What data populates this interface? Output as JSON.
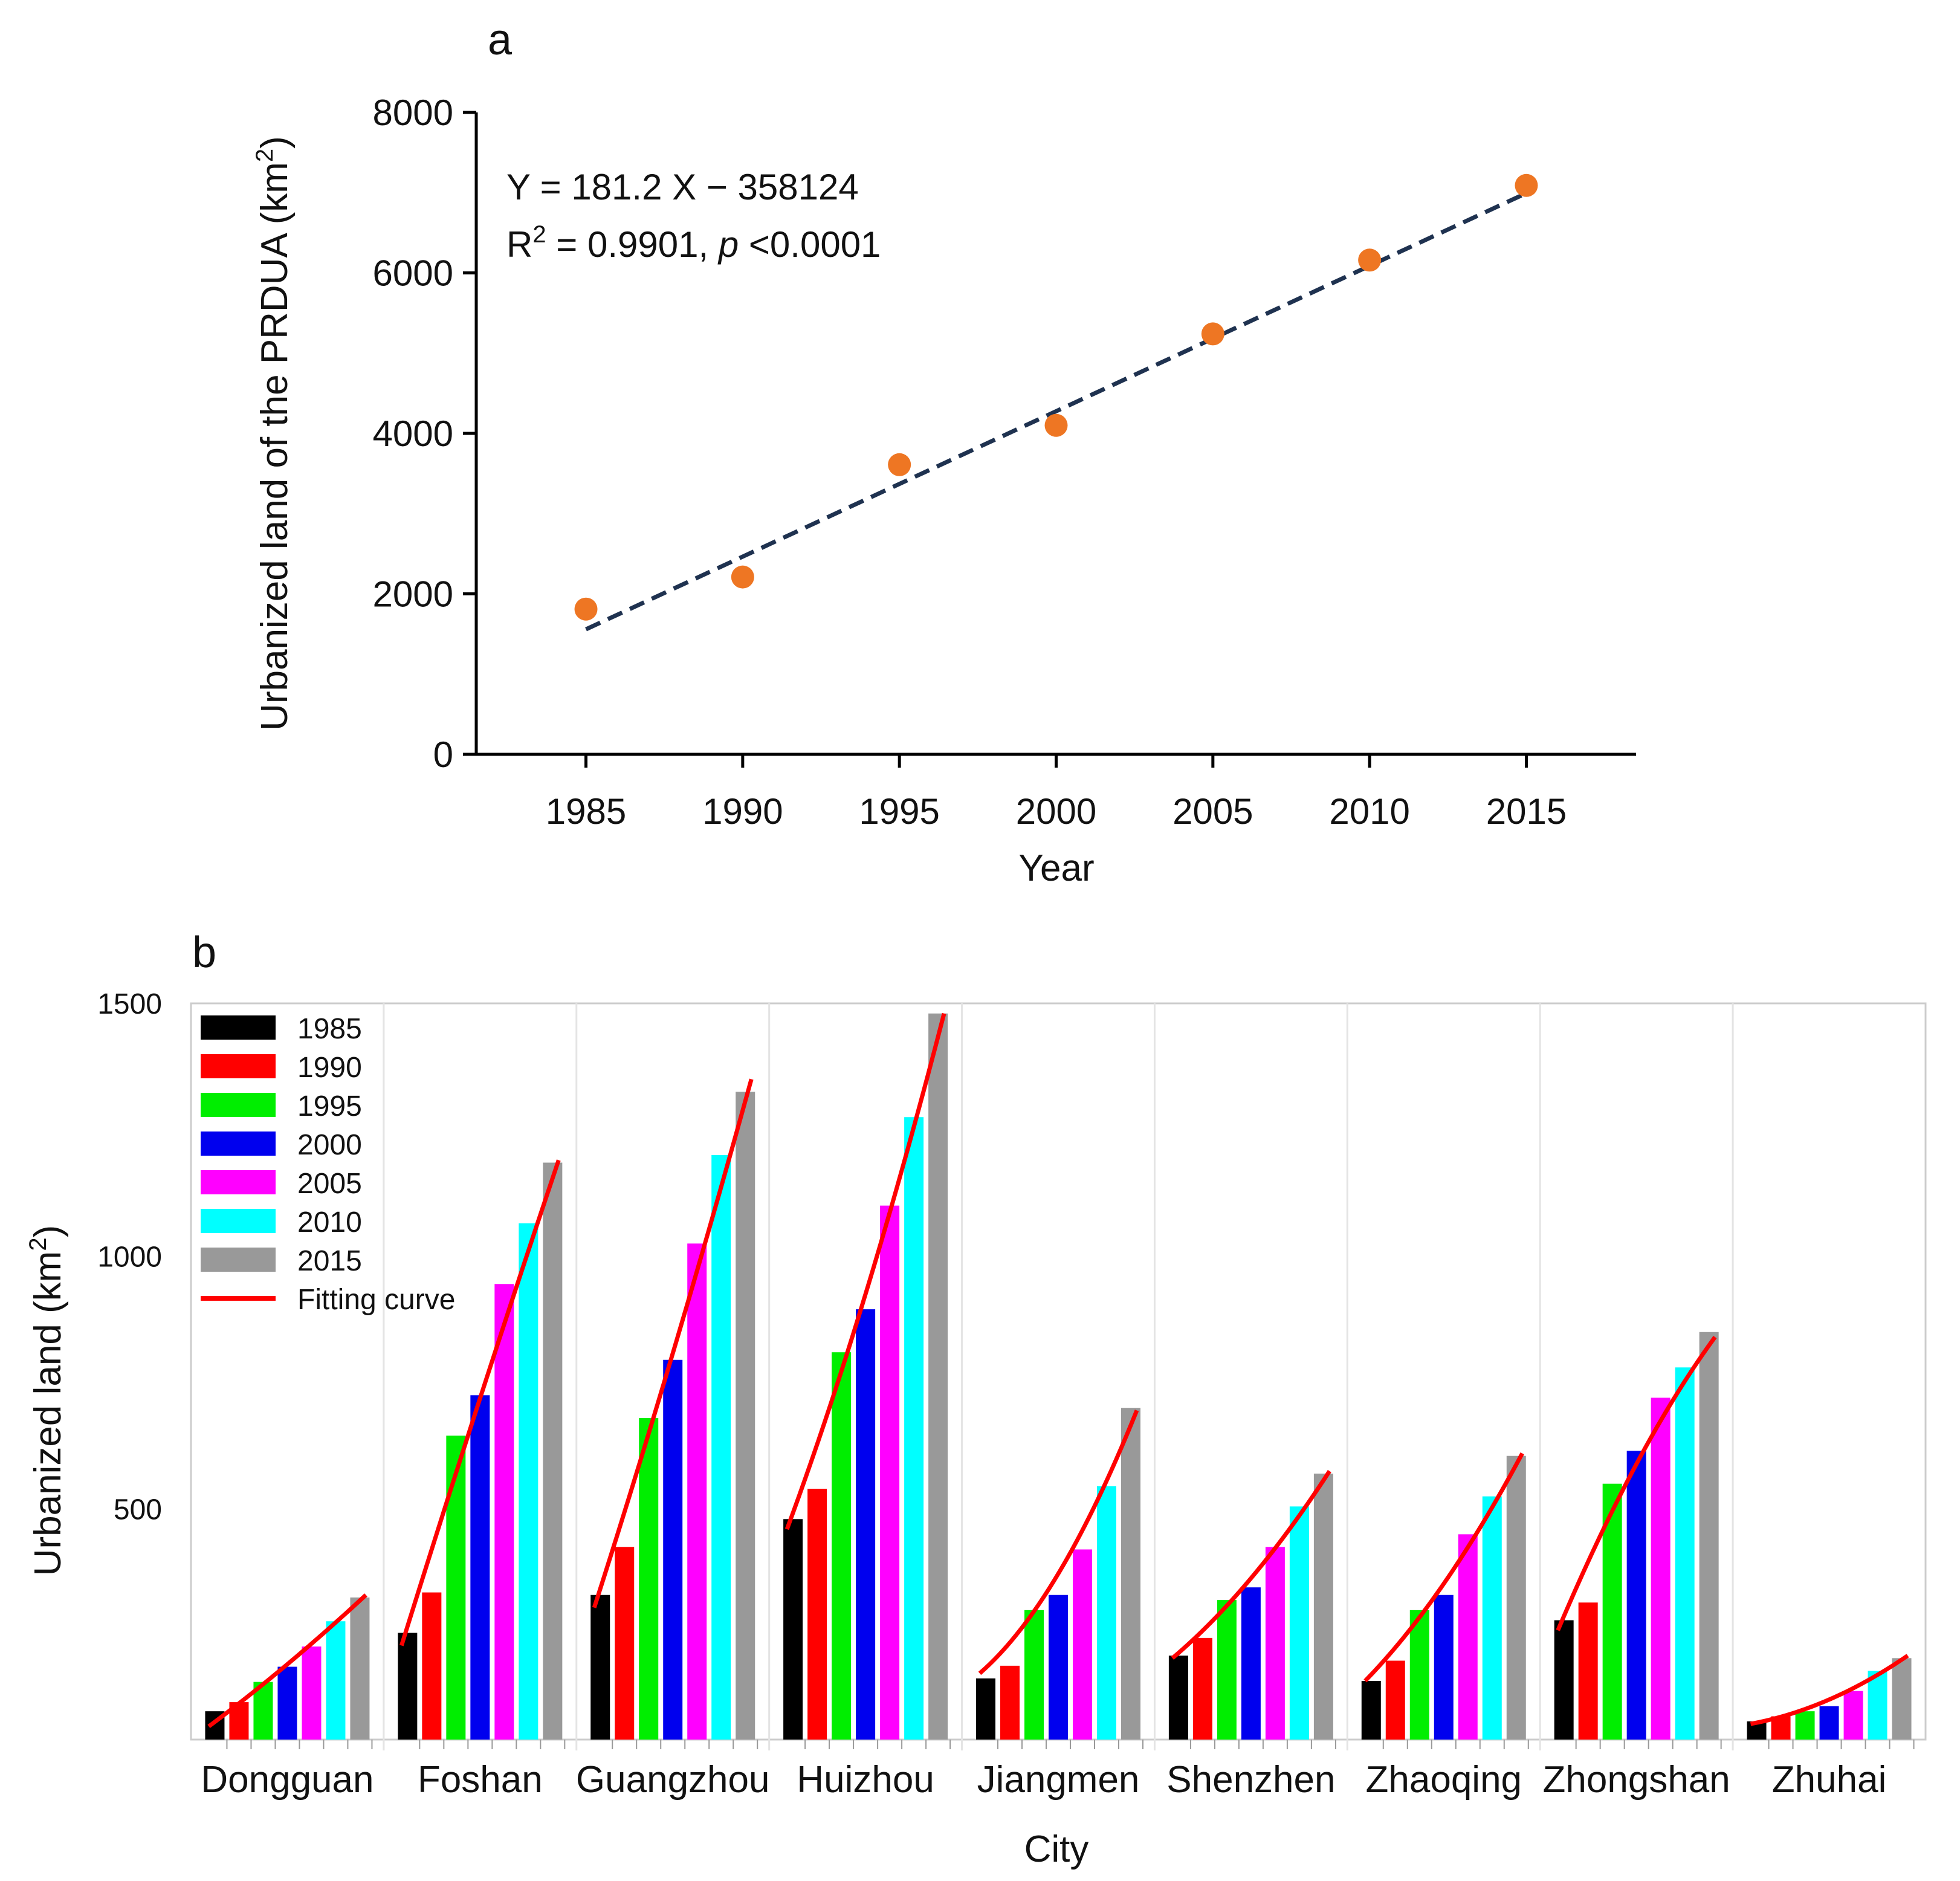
{
  "panel_a_label": "a",
  "panel_b_label": "b",
  "colors": {
    "point": "#ee7623",
    "trend": "#1f3250",
    "fit": "#ff0000",
    "years": [
      "#000000",
      "#ff0000",
      "#00ee00",
      "#0000ee",
      "#ff00ff",
      "#00ffff",
      "#999999"
    ]
  },
  "chart_data": [
    {
      "type": "scatter",
      "title": "",
      "xlabel": "Year",
      "ylabel": "Urbanized land of the PRDUA (km",
      "ylabel_sup": "2",
      "ylabel_end": ")",
      "x": [
        1985,
        1990,
        1995,
        2000,
        2005,
        2010,
        2015
      ],
      "y": [
        1810,
        2210,
        3610,
        4100,
        5240,
        6160,
        7090
      ],
      "xlim": [
        1981.5,
        2018.5
      ],
      "ylim": [
        0,
        8000
      ],
      "xticks": [
        "1985",
        "1990",
        "1995",
        "2000",
        "2005",
        "2010",
        "2015"
      ],
      "yticks": [
        "0",
        "2000",
        "4000",
        "6000",
        "8000"
      ],
      "trendline": {
        "slope": 181.2,
        "intercept": -358124,
        "x_start": 1985,
        "x_end": 2015,
        "style": "dashed"
      },
      "equation": {
        "line1": "Y = 181.2 X − 358124",
        "r2_prefix": "R",
        "r2_sup": "2",
        "r2_value": " = 0.9901, ",
        "p_italic": "p",
        "p_value": " <0.0001"
      }
    },
    {
      "type": "bar",
      "title": "",
      "xlabel": "City",
      "ylabel": "Urbanized land (km",
      "ylabel_sup": "2",
      "ylabel_end": ")",
      "ylim": [
        44,
        1500
      ],
      "yticks": [
        "500",
        "1000",
        "1500"
      ],
      "categories": [
        "Dongguan",
        "Foshan",
        "Guangzhou",
        "Huizhou",
        "Jiangmen",
        "Shenzhen",
        "Zhaoqing",
        "Zhongshan",
        "Zhuhai"
      ],
      "series": [
        {
          "name": "1985",
          "values": [
            100,
            255,
            330,
            480,
            165,
            210,
            160,
            280,
            80
          ]
        },
        {
          "name": "1990",
          "values": [
            118,
            335,
            425,
            540,
            190,
            245,
            200,
            315,
            90
          ]
        },
        {
          "name": "1995",
          "values": [
            158,
            645,
            680,
            810,
            300,
            320,
            300,
            550,
            100
          ]
        },
        {
          "name": "2000",
          "values": [
            188,
            725,
            795,
            895,
            330,
            345,
            330,
            615,
            110
          ]
        },
        {
          "name": "2005",
          "values": [
            228,
            945,
            1025,
            1100,
            420,
            425,
            450,
            720,
            140
          ]
        },
        {
          "name": "2010",
          "values": [
            278,
            1065,
            1200,
            1275,
            545,
            505,
            525,
            780,
            180
          ]
        },
        {
          "name": "2015",
          "values": [
            325,
            1185,
            1325,
            1480,
            700,
            570,
            605,
            850,
            205
          ]
        }
      ],
      "fitting_curve": {
        "name": "Fitting curve",
        "values": [
          [
            70,
            330
          ],
          [
            230,
            1190
          ],
          [
            305,
            1350
          ],
          [
            460,
            1480
          ],
          [
            175,
            695
          ],
          [
            205,
            575
          ],
          [
            160,
            610
          ],
          [
            260,
            840
          ],
          [
            75,
            210
          ]
        ]
      },
      "legend": [
        "1985",
        "1990",
        "1995",
        "2000",
        "2005",
        "2010",
        "2015",
        "Fitting curve"
      ],
      "legend_position": "top-left"
    }
  ]
}
